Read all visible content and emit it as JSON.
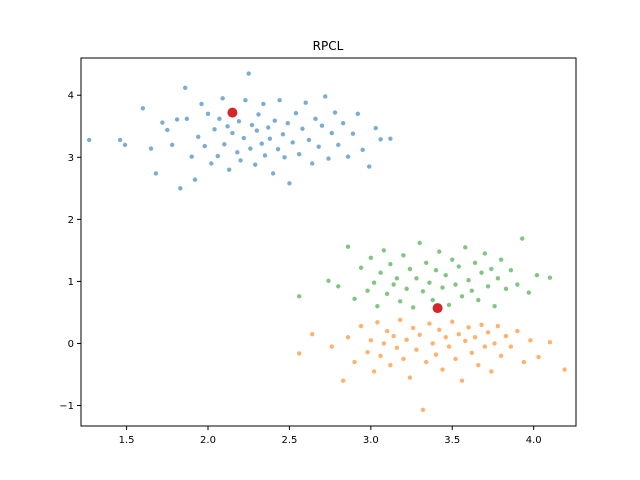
{
  "chart_data": {
    "type": "scatter",
    "title": "RPCL",
    "xlabel": "",
    "ylabel": "",
    "xlim": [
      1.22,
      4.26
    ],
    "ylim": [
      -1.33,
      4.6
    ],
    "x_ticks": [
      1.5,
      2.0,
      2.5,
      3.0,
      3.5,
      4.0
    ],
    "x_tick_labels": [
      "1.5",
      "2.0",
      "2.5",
      "3.0",
      "3.5",
      "4.0"
    ],
    "y_ticks": [
      -1,
      0,
      1,
      2,
      3,
      4
    ],
    "y_tick_labels": [
      "−1",
      "0",
      "1",
      "2",
      "3",
      "4"
    ],
    "grid": false,
    "series": [
      {
        "color": "#1f77b4",
        "alpha": 0.6,
        "marker": "point",
        "values": [
          [
            1.27,
            3.28
          ],
          [
            1.46,
            3.28
          ],
          [
            1.49,
            3.2
          ],
          [
            1.6,
            3.79
          ],
          [
            1.65,
            3.14
          ],
          [
            1.68,
            2.74
          ],
          [
            1.72,
            3.56
          ],
          [
            1.75,
            3.44
          ],
          [
            1.78,
            3.2
          ],
          [
            1.81,
            3.61
          ],
          [
            1.83,
            2.5
          ],
          [
            1.86,
            4.12
          ],
          [
            1.87,
            3.62
          ],
          [
            1.9,
            3.01
          ],
          [
            1.92,
            2.64
          ],
          [
            1.94,
            3.33
          ],
          [
            1.96,
            3.86
          ],
          [
            1.98,
            3.18
          ],
          [
            2.0,
            3.7
          ],
          [
            2.02,
            2.9
          ],
          [
            2.04,
            3.45
          ],
          [
            2.06,
            3.02
          ],
          [
            2.07,
            3.62
          ],
          [
            2.09,
            3.95
          ],
          [
            2.1,
            3.21
          ],
          [
            2.12,
            3.5
          ],
          [
            2.13,
            2.8
          ],
          [
            2.15,
            3.39
          ],
          [
            2.16,
            3.75
          ],
          [
            2.18,
            3.08
          ],
          [
            2.19,
            3.58
          ],
          [
            2.2,
            2.95
          ],
          [
            2.22,
            3.31
          ],
          [
            2.23,
            3.92
          ],
          [
            2.25,
            4.35
          ],
          [
            2.26,
            3.14
          ],
          [
            2.27,
            3.52
          ],
          [
            2.29,
            2.88
          ],
          [
            2.3,
            3.43
          ],
          [
            2.31,
            3.69
          ],
          [
            2.33,
            3.22
          ],
          [
            2.34,
            3.86
          ],
          [
            2.35,
            3.03
          ],
          [
            2.37,
            3.48
          ],
          [
            2.38,
            3.3
          ],
          [
            2.4,
            2.74
          ],
          [
            2.41,
            3.59
          ],
          [
            2.43,
            3.13
          ],
          [
            2.44,
            3.92
          ],
          [
            2.46,
            3.37
          ],
          [
            2.47,
            3.0
          ],
          [
            2.49,
            3.55
          ],
          [
            2.5,
            2.58
          ],
          [
            2.52,
            3.24
          ],
          [
            2.54,
            3.71
          ],
          [
            2.56,
            3.05
          ],
          [
            2.58,
            3.46
          ],
          [
            2.6,
            3.88
          ],
          [
            2.62,
            3.28
          ],
          [
            2.64,
            2.9
          ],
          [
            2.66,
            3.62
          ],
          [
            2.68,
            3.17
          ],
          [
            2.7,
            3.51
          ],
          [
            2.72,
            3.98
          ],
          [
            2.74,
            2.98
          ],
          [
            2.76,
            3.39
          ],
          [
            2.78,
            3.72
          ],
          [
            2.8,
            3.2
          ],
          [
            2.83,
            3.55
          ],
          [
            2.86,
            3.01
          ],
          [
            2.89,
            3.38
          ],
          [
            2.92,
            3.7
          ],
          [
            2.95,
            3.12
          ],
          [
            2.99,
            2.85
          ],
          [
            3.03,
            3.47
          ],
          [
            3.06,
            3.29
          ],
          [
            3.12,
            3.3
          ]
        ]
      },
      {
        "color": "#ff7f0e",
        "alpha": 0.6,
        "marker": "point",
        "values": [
          [
            2.56,
            -0.16
          ],
          [
            2.64,
            0.15
          ],
          [
            2.76,
            -0.05
          ],
          [
            2.83,
            -0.6
          ],
          [
            2.86,
            0.1
          ],
          [
            2.9,
            -0.3
          ],
          [
            2.94,
            0.28
          ],
          [
            2.98,
            -0.14
          ],
          [
            3.0,
            0.05
          ],
          [
            3.02,
            -0.45
          ],
          [
            3.04,
            0.34
          ],
          [
            3.06,
            -0.2
          ],
          [
            3.08,
            0.0
          ],
          [
            3.1,
            0.2
          ],
          [
            3.12,
            -0.35
          ],
          [
            3.14,
            0.12
          ],
          [
            3.16,
            -0.07
          ],
          [
            3.18,
            0.38
          ],
          [
            3.2,
            -0.25
          ],
          [
            3.22,
            0.06
          ],
          [
            3.24,
            -0.55
          ],
          [
            3.26,
            0.25
          ],
          [
            3.28,
            -0.1
          ],
          [
            3.3,
            0.14
          ],
          [
            3.32,
            -1.07
          ],
          [
            3.34,
            -0.3
          ],
          [
            3.36,
            0.32
          ],
          [
            3.38,
            0.0
          ],
          [
            3.4,
            -0.18
          ],
          [
            3.42,
            0.22
          ],
          [
            3.44,
            -0.42
          ],
          [
            3.46,
            0.1
          ],
          [
            3.48,
            -0.05
          ],
          [
            3.5,
            0.35
          ],
          [
            3.52,
            -0.25
          ],
          [
            3.54,
            0.15
          ],
          [
            3.56,
            -0.6
          ],
          [
            3.58,
            0.04
          ],
          [
            3.6,
            0.26
          ],
          [
            3.62,
            -0.15
          ],
          [
            3.64,
            0.1
          ],
          [
            3.66,
            -0.35
          ],
          [
            3.68,
            0.3
          ],
          [
            3.7,
            -0.05
          ],
          [
            3.72,
            0.18
          ],
          [
            3.74,
            -0.45
          ],
          [
            3.76,
            0.0
          ],
          [
            3.78,
            0.28
          ],
          [
            3.8,
            -0.2
          ],
          [
            3.83,
            0.12
          ],
          [
            3.86,
            -0.05
          ],
          [
            3.9,
            0.2
          ],
          [
            3.94,
            -0.3
          ],
          [
            3.98,
            0.05
          ],
          [
            4.03,
            -0.22
          ],
          [
            4.1,
            0.02
          ],
          [
            4.19,
            -0.42
          ]
        ]
      },
      {
        "color": "#2ca02c",
        "alpha": 0.6,
        "marker": "point",
        "values": [
          [
            2.56,
            0.76
          ],
          [
            2.74,
            1.01
          ],
          [
            2.8,
            0.92
          ],
          [
            2.86,
            1.56
          ],
          [
            2.9,
            0.72
          ],
          [
            2.94,
            1.22
          ],
          [
            2.98,
            0.85
          ],
          [
            3.0,
            1.38
          ],
          [
            3.02,
            0.98
          ],
          [
            3.04,
            0.6
          ],
          [
            3.06,
            1.14
          ],
          [
            3.08,
            1.5
          ],
          [
            3.1,
            0.8
          ],
          [
            3.12,
            1.28
          ],
          [
            3.14,
            0.95
          ],
          [
            3.16,
            1.05
          ],
          [
            3.18,
            0.68
          ],
          [
            3.2,
            1.42
          ],
          [
            3.22,
            0.88
          ],
          [
            3.24,
            1.2
          ],
          [
            3.26,
            0.58
          ],
          [
            3.28,
            1.05
          ],
          [
            3.3,
            1.62
          ],
          [
            3.32,
            0.84
          ],
          [
            3.34,
            1.3
          ],
          [
            3.36,
            0.98
          ],
          [
            3.38,
            0.7
          ],
          [
            3.4,
            1.18
          ],
          [
            3.42,
            1.48
          ],
          [
            3.44,
            0.9
          ],
          [
            3.46,
            1.1
          ],
          [
            3.48,
            0.62
          ],
          [
            3.5,
            1.35
          ],
          [
            3.52,
            0.95
          ],
          [
            3.54,
            1.24
          ],
          [
            3.56,
            0.76
          ],
          [
            3.58,
            1.55
          ],
          [
            3.6,
            1.02
          ],
          [
            3.62,
            0.85
          ],
          [
            3.64,
            1.3
          ],
          [
            3.66,
            0.7
          ],
          [
            3.68,
            1.14
          ],
          [
            3.7,
            1.45
          ],
          [
            3.72,
            0.92
          ],
          [
            3.74,
            1.2
          ],
          [
            3.76,
            0.6
          ],
          [
            3.78,
            1.05
          ],
          [
            3.8,
            1.35
          ],
          [
            3.83,
            0.88
          ],
          [
            3.86,
            1.18
          ],
          [
            3.9,
            0.95
          ],
          [
            3.93,
            1.69
          ],
          [
            3.97,
            0.82
          ],
          [
            4.02,
            1.1
          ],
          [
            4.1,
            1.06
          ]
        ]
      }
    ],
    "centers": {
      "color": "#d62728",
      "values": [
        [
          2.15,
          3.72
        ],
        [
          3.41,
          0.57
        ]
      ]
    }
  }
}
